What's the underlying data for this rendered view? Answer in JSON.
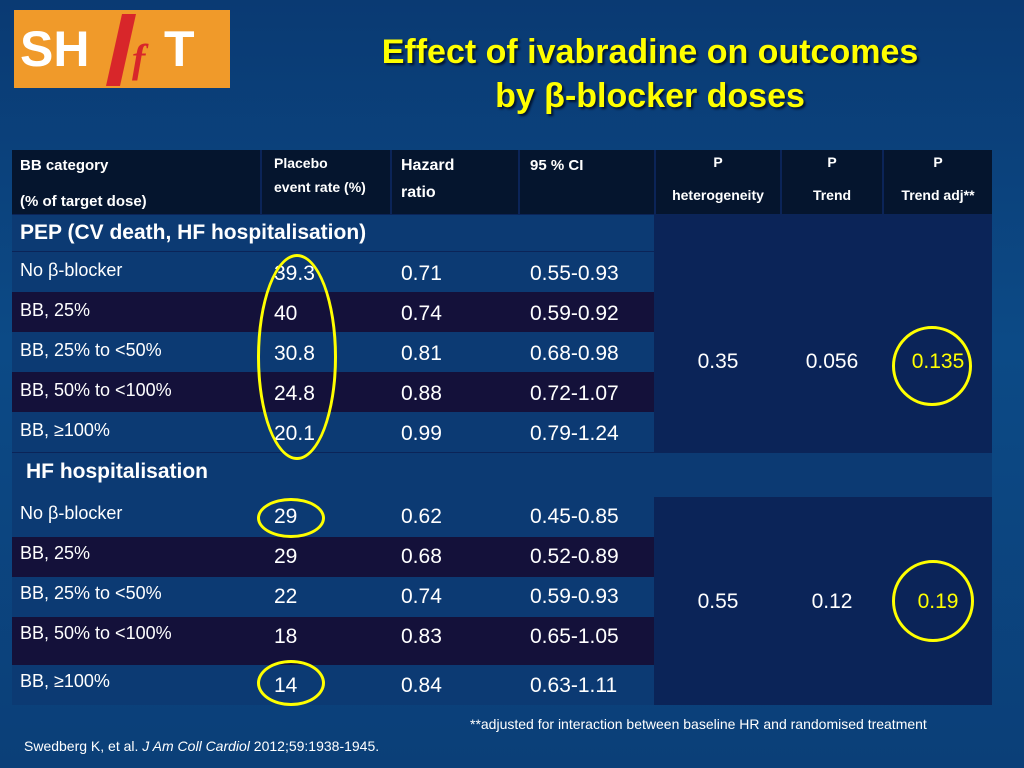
{
  "logo": {
    "text": "SHIfT"
  },
  "title": {
    "line1": "Effect of ivabradine on outcomes",
    "line2": "by β-blocker doses"
  },
  "header": {
    "bb_category": "BB category",
    "bb_category_sub": "(% of target dose)",
    "placebo_line1": "Placebo",
    "placebo_line2": "event rate (%)",
    "hr_line1": "Hazard",
    "hr_line2": "ratio",
    "ci": "95 % CI",
    "p_het_label": "P",
    "p_het_sub": "heterogeneity",
    "p_trend_label": "P",
    "p_trend_sub": "Trend",
    "p_adj_label": "P",
    "p_adj_sub": "Trend adj**"
  },
  "sections": [
    {
      "title": "PEP (CV death, HF hospitalisation)",
      "rows": [
        {
          "category": "No β-blocker",
          "placebo": "39.3",
          "hr": "0.71",
          "ci": "0.55-0.93"
        },
        {
          "category": "BB,  25%",
          "placebo": "40",
          "hr": "0.74",
          "ci": "0.59-0.92"
        },
        {
          "category": "BB, 25% to <50%",
          "placebo": "30.8",
          "hr": "0.81",
          "ci": "0.68-0.98"
        },
        {
          "category": "BB, 50% to <100%",
          "placebo": "24.8",
          "hr": "0.88",
          "ci": "0.72-1.07"
        },
        {
          "category": "BB, ≥100%",
          "placebo": "20.1",
          "hr": "0.99",
          "ci": "0.79-1.24"
        }
      ],
      "p_heterogeneity": "0.35",
      "p_trend": "0.056",
      "p_trend_adj": "0.135"
    },
    {
      "title": "HF hospitalisation",
      "rows": [
        {
          "category": "No β-blocker",
          "placebo": "29",
          "hr": "0.62",
          "ci": "0.45-0.85"
        },
        {
          "category": "BB,  25%",
          "placebo": "29",
          "hr": "0.68",
          "ci": "0.52-0.89"
        },
        {
          "category": "BB, 25% to <50%",
          "placebo": "22",
          "hr": "0.74",
          "ci": "0.59-0.93"
        },
        {
          "category": "BB, 50% to <100%",
          "placebo": "18",
          "hr": "0.83",
          "ci": "0.65-1.05"
        },
        {
          "category": "BB, ≥100%",
          "placebo": "14",
          "hr": "0.84",
          "ci": "0.63-1.11"
        }
      ],
      "p_heterogeneity": "0.55",
      "p_trend": "0.12",
      "p_trend_adj": "0.19"
    }
  ],
  "footnote": "**adjusted for interaction between baseline HR and randomised treatment",
  "citation": {
    "authors": "Swedberg K, et al. ",
    "journal": "J Am Coll Cardiol",
    "details": " 2012;59:1938-1945."
  },
  "colors": {
    "title": "#ffff00",
    "highlight_circle": "#ffff00",
    "logo_bg": "#f09a2a",
    "logo_slash": "#d8262a"
  }
}
